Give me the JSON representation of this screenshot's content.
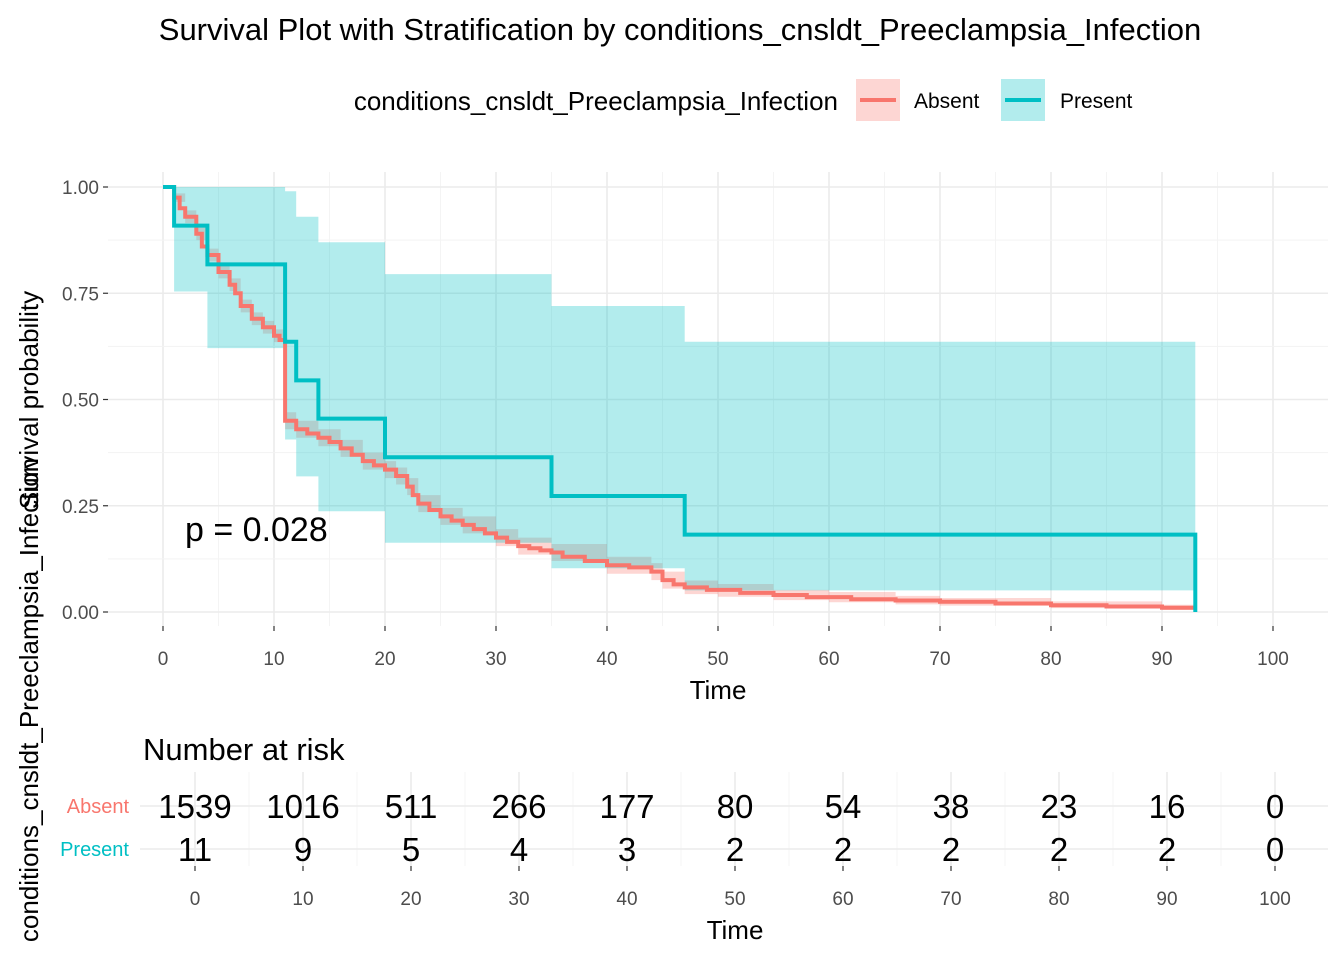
{
  "chart_data": [
    {
      "type": "line",
      "subtype": "kaplan-meier step",
      "title": "Survival Plot with Stratification by conditions_cnsldt_Preeclampsia_Infection",
      "xlabel": "Time",
      "ylabel": "Survival probability",
      "xlim": [
        0,
        100
      ],
      "ylim": [
        0,
        1
      ],
      "x_ticks": [
        0,
        10,
        20,
        30,
        40,
        50,
        60,
        70,
        80,
        90,
        100
      ],
      "y_ticks": [
        "0.00",
        "0.25",
        "0.50",
        "0.75",
        "1.00"
      ],
      "grid": true,
      "legend": {
        "title": "conditions_cnsldt_Preeclampsia_Infection",
        "position": "top",
        "entries": [
          "Absent",
          "Present"
        ]
      },
      "annotation": "p = 0.028",
      "series": [
        {
          "name": "Absent",
          "color": "#F8766D",
          "ci_color": "#F8766D",
          "points": [
            [
              0,
              1.0
            ],
            [
              1,
              0.975
            ],
            [
              1.5,
              0.95
            ],
            [
              2,
              0.93
            ],
            [
              3,
              0.89
            ],
            [
              3.5,
              0.86
            ],
            [
              4,
              0.84
            ],
            [
              5,
              0.8
            ],
            [
              6,
              0.77
            ],
            [
              6.5,
              0.75
            ],
            [
              7,
              0.72
            ],
            [
              8,
              0.69
            ],
            [
              9,
              0.67
            ],
            [
              10,
              0.65
            ],
            [
              10.5,
              0.64
            ],
            [
              11,
              0.45
            ],
            [
              12,
              0.43
            ],
            [
              13,
              0.42
            ],
            [
              14,
              0.41
            ],
            [
              15,
              0.4
            ],
            [
              16,
              0.385
            ],
            [
              17,
              0.37
            ],
            [
              18,
              0.355
            ],
            [
              19,
              0.345
            ],
            [
              20,
              0.335
            ],
            [
              21,
              0.32
            ],
            [
              22,
              0.295
            ],
            [
              22.5,
              0.275
            ],
            [
              23,
              0.255
            ],
            [
              24,
              0.24
            ],
            [
              25,
              0.225
            ],
            [
              26,
              0.215
            ],
            [
              27,
              0.205
            ],
            [
              28,
              0.195
            ],
            [
              29,
              0.185
            ],
            [
              30,
              0.175
            ],
            [
              31,
              0.165
            ],
            [
              32,
              0.155
            ],
            [
              33,
              0.15
            ],
            [
              34,
              0.145
            ],
            [
              35,
              0.14
            ],
            [
              36,
              0.13
            ],
            [
              38,
              0.12
            ],
            [
              40,
              0.11
            ],
            [
              42,
              0.105
            ],
            [
              44,
              0.095
            ],
            [
              45,
              0.075
            ],
            [
              46,
              0.065
            ],
            [
              47,
              0.058
            ],
            [
              49,
              0.052
            ],
            [
              52,
              0.045
            ],
            [
              55,
              0.04
            ],
            [
              58,
              0.035
            ],
            [
              62,
              0.03
            ],
            [
              66,
              0.027
            ],
            [
              70,
              0.024
            ],
            [
              75,
              0.02
            ],
            [
              80,
              0.016
            ],
            [
              85,
              0.013
            ],
            [
              90,
              0.01
            ],
            [
              93,
              0.01
            ]
          ],
          "ci_lower": [
            [
              0,
              1.0
            ],
            [
              1,
              0.965
            ],
            [
              2,
              0.915
            ],
            [
              3,
              0.875
            ],
            [
              4,
              0.825
            ],
            [
              5,
              0.785
            ],
            [
              6,
              0.755
            ],
            [
              7,
              0.705
            ],
            [
              8,
              0.675
            ],
            [
              9,
              0.655
            ],
            [
              10,
              0.635
            ],
            [
              11,
              0.43
            ],
            [
              12,
              0.41
            ],
            [
              14,
              0.39
            ],
            [
              16,
              0.365
            ],
            [
              18,
              0.335
            ],
            [
              20,
              0.315
            ],
            [
              21,
              0.3
            ],
            [
              22,
              0.275
            ],
            [
              23,
              0.235
            ],
            [
              25,
              0.205
            ],
            [
              27,
              0.185
            ],
            [
              30,
              0.155
            ],
            [
              32,
              0.135
            ],
            [
              35,
              0.12
            ],
            [
              40,
              0.09
            ],
            [
              44,
              0.075
            ],
            [
              45,
              0.055
            ],
            [
              47,
              0.042
            ],
            [
              50,
              0.036
            ],
            [
              55,
              0.028
            ],
            [
              60,
              0.023
            ],
            [
              66,
              0.018
            ],
            [
              70,
              0.015
            ],
            [
              80,
              0.009
            ],
            [
              90,
              0.005
            ],
            [
              93,
              0.005
            ]
          ],
          "ci_upper": [
            [
              0,
              1.0
            ],
            [
              1,
              0.985
            ],
            [
              2,
              0.945
            ],
            [
              3,
              0.905
            ],
            [
              4,
              0.855
            ],
            [
              5,
              0.815
            ],
            [
              6,
              0.785
            ],
            [
              7,
              0.735
            ],
            [
              8,
              0.705
            ],
            [
              9,
              0.685
            ],
            [
              10,
              0.665
            ],
            [
              11,
              0.47
            ],
            [
              12,
              0.45
            ],
            [
              14,
              0.43
            ],
            [
              16,
              0.405
            ],
            [
              18,
              0.375
            ],
            [
              20,
              0.355
            ],
            [
              21,
              0.34
            ],
            [
              22,
              0.315
            ],
            [
              23,
              0.275
            ],
            [
              25,
              0.245
            ],
            [
              27,
              0.225
            ],
            [
              30,
              0.195
            ],
            [
              32,
              0.175
            ],
            [
              35,
              0.16
            ],
            [
              40,
              0.13
            ],
            [
              44,
              0.115
            ],
            [
              45,
              0.095
            ],
            [
              47,
              0.074
            ],
            [
              50,
              0.066
            ],
            [
              55,
              0.052
            ],
            [
              60,
              0.047
            ],
            [
              66,
              0.038
            ],
            [
              70,
              0.033
            ],
            [
              80,
              0.025
            ],
            [
              90,
              0.017
            ],
            [
              93,
              0.017
            ]
          ]
        },
        {
          "name": "Present",
          "color": "#00BFC4",
          "ci_color": "#00BFC4",
          "points": [
            [
              0,
              1.0
            ],
            [
              1,
              0.909
            ],
            [
              4,
              0.818
            ],
            [
              11,
              0.636
            ],
            [
              12,
              0.545
            ],
            [
              14,
              0.455
            ],
            [
              20,
              0.364
            ],
            [
              35,
              0.273
            ],
            [
              47,
              0.182
            ],
            [
              93,
              0.182
            ],
            [
              93,
              0.0
            ]
          ],
          "ci_lower": [
            [
              0,
              1.0
            ],
            [
              1,
              0.754
            ],
            [
              4,
              0.621
            ],
            [
              11,
              0.406
            ],
            [
              12,
              0.319
            ],
            [
              14,
              0.237
            ],
            [
              20,
              0.163
            ],
            [
              35,
              0.103
            ],
            [
              47,
              0.051
            ],
            [
              93,
              0.051
            ]
          ],
          "ci_upper": [
            [
              0,
              1.0
            ],
            [
              11,
              0.99
            ],
            [
              12,
              0.93
            ],
            [
              14,
              0.87
            ],
            [
              20,
              0.795
            ],
            [
              35,
              0.72
            ],
            [
              47,
              0.636
            ],
            [
              93,
              0.636
            ]
          ]
        }
      ]
    },
    {
      "type": "table",
      "title": "Number at risk",
      "xlabel": "Time",
      "ylabel": "conditions_cnsldt_Preeclampsia_Infection",
      "x_ticks": [
        0,
        10,
        20,
        30,
        40,
        50,
        60,
        70,
        80,
        90,
        100
      ],
      "rows": [
        {
          "label": "Absent",
          "color": "#F8766D",
          "values": [
            1539,
            1016,
            511,
            266,
            177,
            80,
            54,
            38,
            23,
            16,
            0
          ]
        },
        {
          "label": "Present",
          "color": "#00BFC4",
          "values": [
            11,
            9,
            5,
            4,
            3,
            2,
            2,
            2,
            2,
            2,
            0
          ]
        }
      ]
    }
  ]
}
